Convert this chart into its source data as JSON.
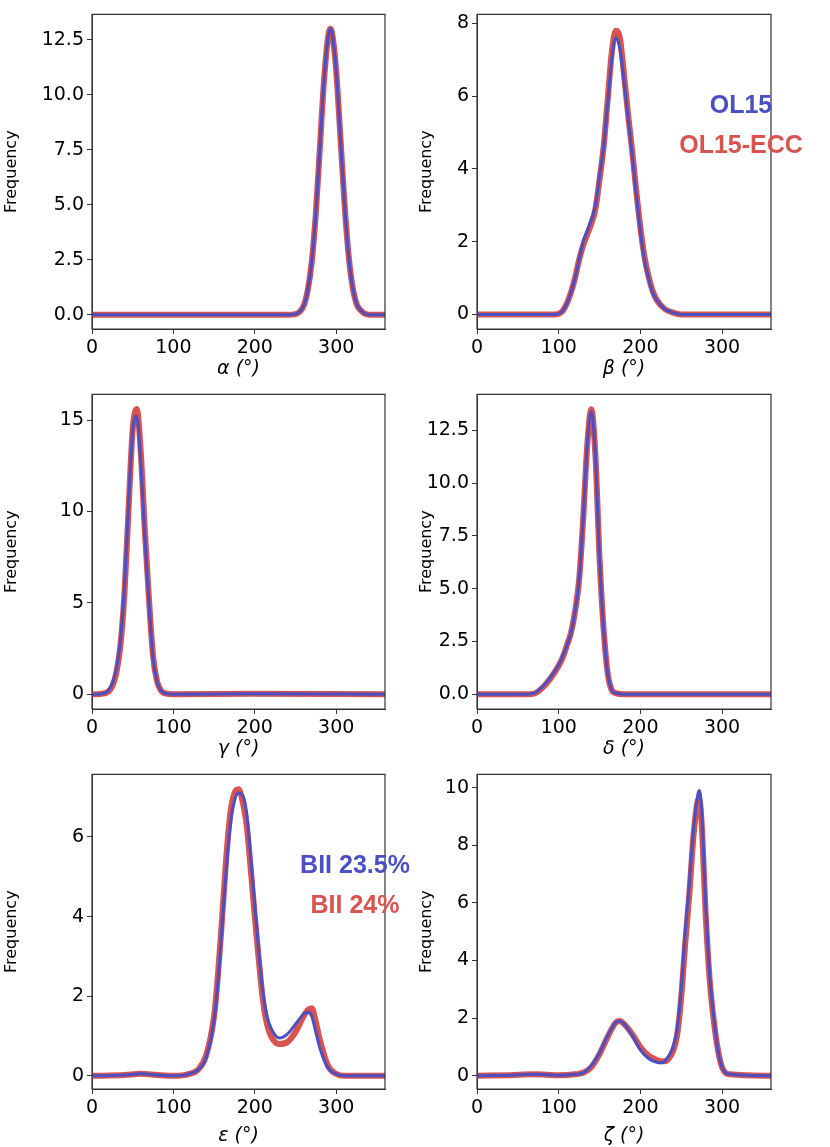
{
  "chart_data": [
    {
      "type": "line",
      "xlabel": "α (°)",
      "ylabel": "Frequency",
      "xlim": [
        0,
        360
      ],
      "xticks": [
        0,
        100,
        200,
        300
      ],
      "ylim": [
        -0.65,
        13.65
      ],
      "yticks": [
        {
          "value": 0,
          "label": "0.0"
        },
        {
          "value": 2.5,
          "label": "2.5"
        },
        {
          "value": 5,
          "label": "5.0"
        },
        {
          "value": 7.5,
          "label": "7.5"
        },
        {
          "value": 10,
          "label": "10.0"
        },
        {
          "value": 12.5,
          "label": "12.5"
        }
      ],
      "x": [
        0,
        100,
        200,
        240,
        250,
        260,
        265,
        270,
        275,
        280,
        285,
        290,
        293,
        295,
        300,
        305,
        310,
        315,
        320,
        325,
        330,
        340,
        360
      ],
      "series": [
        {
          "color": "#4b4fc4",
          "values": [
            0,
            0,
            0,
            0,
            0.03,
            0.4,
            1.1,
            2.4,
            4.6,
            7.6,
            10.6,
            12.6,
            13.0,
            12.8,
            11.1,
            8.2,
            5.2,
            2.8,
            1.3,
            0.5,
            0.2,
            0,
            0
          ]
        },
        {
          "color": "#d9534f",
          "values": [
            0,
            0,
            0,
            0,
            0.03,
            0.4,
            1.1,
            2.4,
            4.6,
            7.6,
            10.6,
            12.6,
            13.0,
            12.8,
            11.1,
            8.2,
            5.2,
            2.8,
            1.3,
            0.5,
            0.2,
            0,
            0
          ]
        }
      ]
    },
    {
      "type": "line",
      "xlabel": "β (°)",
      "ylabel": "Frequency",
      "xlim": [
        0,
        360
      ],
      "xticks": [
        0,
        100,
        200,
        300
      ],
      "ylim": [
        -0.4,
        8.25
      ],
      "yticks": [
        0,
        2,
        4,
        6,
        8
      ],
      "x": [
        0,
        50,
        95,
        100,
        105,
        110,
        115,
        120,
        125,
        130,
        135,
        140,
        145,
        150,
        155,
        160,
        165,
        170,
        175,
        180,
        185,
        190,
        195,
        200,
        205,
        210,
        215,
        220,
        230,
        240,
        250,
        300,
        360
      ],
      "series": [
        {
          "name": "OL15",
          "color": "#4b4fc4",
          "values": [
            0,
            0,
            0,
            0.02,
            0.1,
            0.3,
            0.6,
            1.0,
            1.5,
            2.0,
            2.3,
            2.6,
            3.0,
            3.8,
            4.6,
            5.8,
            7.0,
            7.6,
            7.3,
            6.4,
            5.4,
            4.4,
            3.3,
            2.3,
            1.5,
            1.0,
            0.6,
            0.4,
            0.15,
            0.05,
            0,
            0,
            0
          ]
        },
        {
          "name": "OL15-ECC",
          "color": "#d9534f",
          "values": [
            0,
            0,
            0,
            0.02,
            0.1,
            0.3,
            0.6,
            1.0,
            1.5,
            1.9,
            2.2,
            2.5,
            2.9,
            3.7,
            4.6,
            5.9,
            7.2,
            7.8,
            7.6,
            6.6,
            5.5,
            4.5,
            3.4,
            2.4,
            1.6,
            1.05,
            0.65,
            0.4,
            0.15,
            0.05,
            0,
            0,
            0
          ]
        }
      ]
    },
    {
      "type": "line",
      "xlabel": "γ (°)",
      "ylabel": "Frequency",
      "xlim": [
        0,
        360
      ],
      "xticks": [
        0,
        100,
        200,
        300
      ],
      "ylim": [
        -0.8,
        16.4
      ],
      "yticks": [
        0,
        5,
        10,
        15
      ],
      "x": [
        0,
        10,
        20,
        25,
        30,
        35,
        40,
        45,
        50,
        55,
        60,
        65,
        70,
        75,
        80,
        85,
        90,
        100,
        200,
        360
      ],
      "series": [
        {
          "color": "#4b4fc4",
          "values": [
            0,
            0.02,
            0.2,
            0.6,
            1.4,
            3.0,
            6.0,
            10.5,
            14.4,
            15.2,
            12.6,
            8.5,
            5.0,
            2.0,
            0.7,
            0.2,
            0.05,
            0,
            0.03,
            0
          ]
        },
        {
          "color": "#d9534f",
          "values": [
            0,
            0.02,
            0.15,
            0.45,
            1.2,
            2.7,
            5.6,
            10.2,
            14.5,
            15.6,
            13.2,
            8.9,
            5.2,
            2.1,
            0.7,
            0.2,
            0.05,
            0,
            0.03,
            0
          ]
        }
      ]
    },
    {
      "type": "line",
      "xlabel": "δ (°)",
      "ylabel": "Frequency",
      "xlim": [
        0,
        360
      ],
      "xticks": [
        0,
        100,
        200,
        300
      ],
      "ylim": [
        -0.7,
        14.2
      ],
      "yticks": [
        {
          "value": 0,
          "label": "0.0"
        },
        {
          "value": 2.5,
          "label": "2.5"
        },
        {
          "value": 5,
          "label": "5.0"
        },
        {
          "value": 7.5,
          "label": "7.5"
        },
        {
          "value": 10,
          "label": "10.0"
        },
        {
          "value": 12.5,
          "label": "12.5"
        }
      ],
      "x": [
        0,
        60,
        70,
        80,
        90,
        100,
        105,
        110,
        115,
        120,
        125,
        130,
        135,
        140,
        145,
        150,
        155,
        160,
        165,
        170,
        180,
        360
      ],
      "series": [
        {
          "color": "#4b4fc4",
          "values": [
            0,
            0,
            0.05,
            0.35,
            0.8,
            1.4,
            1.8,
            2.3,
            2.9,
            3.9,
            5.4,
            8.3,
            11.8,
            13.4,
            11.3,
            6.5,
            3.1,
            1.0,
            0.2,
            0.05,
            0,
            0
          ]
        },
        {
          "color": "#d9534f",
          "values": [
            0,
            0,
            0.03,
            0.3,
            0.75,
            1.35,
            1.75,
            2.3,
            2.9,
            3.9,
            5.4,
            8.3,
            11.8,
            13.5,
            11.3,
            6.5,
            3.1,
            1.0,
            0.2,
            0.05,
            0,
            0
          ]
        }
      ]
    },
    {
      "type": "line",
      "xlabel": "ε (°)",
      "ylabel": "Frequency",
      "xlim": [
        0,
        360
      ],
      "xticks": [
        0,
        100,
        200,
        300
      ],
      "ylim": [
        -0.33,
        7.57
      ],
      "yticks": [
        0,
        2,
        4,
        6
      ],
      "annotations": [
        "BII 23.5%",
        "BII 24%"
      ],
      "x": [
        0,
        40,
        60,
        80,
        100,
        120,
        130,
        140,
        150,
        155,
        160,
        165,
        170,
        175,
        180,
        185,
        190,
        195,
        200,
        205,
        210,
        215,
        220,
        230,
        240,
        250,
        260,
        265,
        270,
        275,
        280,
        290,
        300,
        310,
        360
      ],
      "series": [
        {
          "color": "#4b4fc4",
          "values": [
            0,
            0.02,
            0.05,
            0.02,
            0,
            0.05,
            0.15,
            0.45,
            1.4,
            2.4,
            3.8,
            5.2,
            6.3,
            6.9,
            7.1,
            7.05,
            6.6,
            5.5,
            4.3,
            3.1,
            2.1,
            1.5,
            1.2,
            0.95,
            1.05,
            1.3,
            1.55,
            1.6,
            1.5,
            1.1,
            0.7,
            0.2,
            0.05,
            0,
            0
          ]
        },
        {
          "color": "#d9534f",
          "values": [
            0,
            0.02,
            0.05,
            0.02,
            0,
            0.05,
            0.15,
            0.5,
            1.5,
            2.6,
            4.0,
            5.5,
            6.6,
            7.1,
            7.2,
            6.9,
            6.3,
            5.2,
            4.0,
            2.9,
            1.9,
            1.3,
            1.0,
            0.8,
            0.85,
            1.1,
            1.5,
            1.65,
            1.7,
            1.35,
            0.9,
            0.25,
            0.05,
            0,
            0
          ]
        }
      ]
    },
    {
      "type": "line",
      "xlabel": "ζ (°)",
      "ylabel": "Frequency",
      "xlim": [
        0,
        360
      ],
      "xticks": [
        0,
        100,
        200,
        300
      ],
      "ylim": [
        -0.46,
        10.46
      ],
      "yticks": [
        0,
        2,
        4,
        6,
        8,
        10
      ],
      "x": [
        0,
        40,
        70,
        100,
        120,
        130,
        140,
        150,
        160,
        170,
        175,
        180,
        190,
        200,
        210,
        220,
        225,
        230,
        235,
        240,
        245,
        250,
        255,
        260,
        265,
        270,
        272,
        275,
        280,
        285,
        290,
        295,
        300,
        310,
        360
      ],
      "series": [
        {
          "color": "#4b4fc4",
          "values": [
            0,
            0.02,
            0.05,
            0.02,
            0.05,
            0.1,
            0.35,
            0.8,
            1.4,
            1.85,
            1.9,
            1.8,
            1.4,
            0.9,
            0.6,
            0.47,
            0.45,
            0.5,
            0.7,
            1.0,
            1.6,
            3.0,
            5.0,
            6.7,
            8.5,
            9.7,
            9.9,
            9.3,
            6.0,
            3.5,
            2.0,
            0.9,
            0.3,
            0.05,
            0
          ]
        },
        {
          "color": "#d9534f",
          "values": [
            0,
            0.02,
            0.05,
            0.02,
            0.05,
            0.1,
            0.3,
            0.75,
            1.35,
            1.85,
            1.9,
            1.8,
            1.45,
            1.0,
            0.7,
            0.55,
            0.5,
            0.5,
            0.6,
            0.85,
            1.4,
            2.7,
            4.6,
            6.3,
            8.3,
            9.5,
            9.6,
            8.8,
            5.6,
            3.3,
            1.9,
            0.9,
            0.3,
            0.05,
            0
          ]
        }
      ]
    }
  ]
}
